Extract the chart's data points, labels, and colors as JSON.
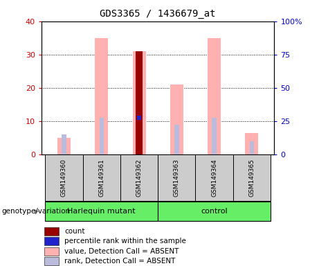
{
  "title": "GDS3365 / 1436679_at",
  "samples": [
    "GSM149360",
    "GSM149361",
    "GSM149362",
    "GSM149363",
    "GSM149364",
    "GSM149365"
  ],
  "ylim_left": [
    0,
    40
  ],
  "ylim_right": [
    0,
    100
  ],
  "yticks_left": [
    0,
    10,
    20,
    30,
    40
  ],
  "yticks_right": [
    0,
    25,
    50,
    75,
    100
  ],
  "yticklabels_right": [
    "0",
    "25",
    "50",
    "75",
    "100%"
  ],
  "pink_bars": [
    5,
    35,
    31,
    21,
    35,
    6.5
  ],
  "blue_bars": [
    6,
    11,
    11,
    9,
    11,
    4
  ],
  "red_bar_index": 2,
  "red_bar_value": 31,
  "blue_dot_index": 2,
  "blue_dot_value": 11,
  "color_pink": "#FFB0B0",
  "color_blue_rank": "#BBBBDD",
  "color_red": "#990000",
  "color_blue_dot": "#2222CC",
  "color_green": "#66EE66",
  "color_gray": "#CCCCCC",
  "left_yaxis_color": "#CC0000",
  "right_yaxis_color": "#0000CC",
  "legend_items": [
    {
      "label": "count",
      "color": "#990000"
    },
    {
      "label": "percentile rank within the sample",
      "color": "#2222CC"
    },
    {
      "label": "value, Detection Call = ABSENT",
      "color": "#FFB0B0"
    },
    {
      "label": "rank, Detection Call = ABSENT",
      "color": "#BBBBDD"
    }
  ]
}
